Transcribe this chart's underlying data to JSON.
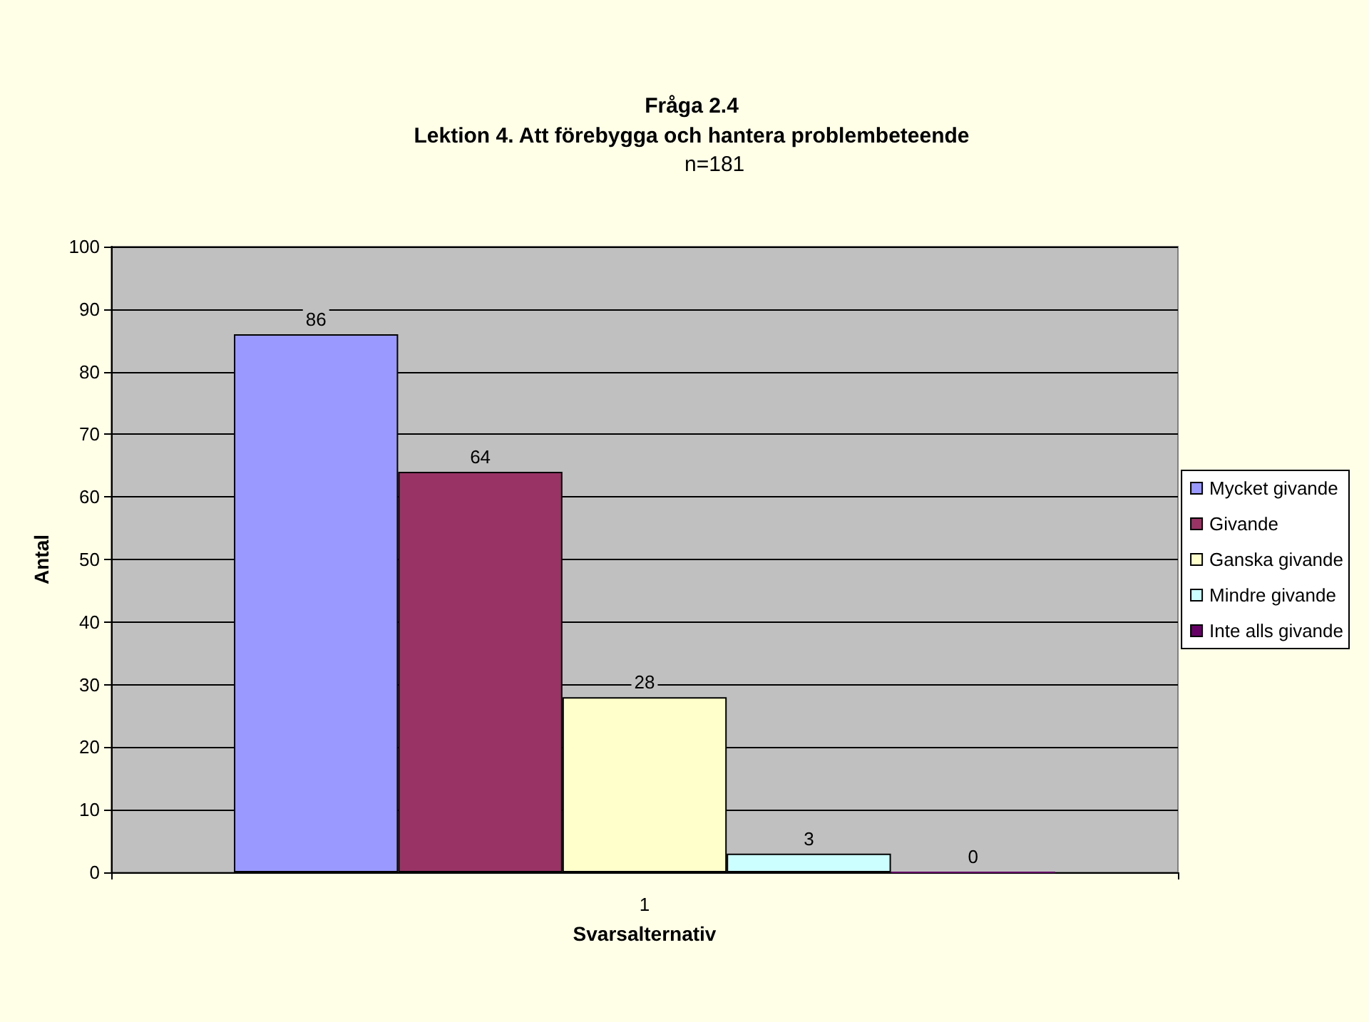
{
  "chart_data": {
    "type": "bar",
    "title": "Fråga 2.4",
    "subtitle": "Lektion 4. Att förebygga och hantera problembeteende",
    "annotations": [
      "n=181"
    ],
    "xlabel": "Svarsalternativ",
    "ylabel": "Antal",
    "categories": [
      "1"
    ],
    "series": [
      {
        "name": "Mycket givande",
        "color": "#9999ff",
        "values": [
          86
        ]
      },
      {
        "name": "Givande",
        "color": "#993366",
        "values": [
          64
        ]
      },
      {
        "name": "Ganska givande",
        "color": "#ffffcc",
        "values": [
          28
        ]
      },
      {
        "name": "Mindre givande",
        "color": "#ccffff",
        "values": [
          3
        ]
      },
      {
        "name": "Inte alls givande",
        "color": "#660066",
        "values": [
          0
        ]
      }
    ],
    "ylim": [
      0,
      100
    ],
    "yticks": [
      0,
      10,
      20,
      30,
      40,
      50,
      60,
      70,
      80,
      90,
      100
    ],
    "grid": "y",
    "legend": "right",
    "data_labels": true
  }
}
